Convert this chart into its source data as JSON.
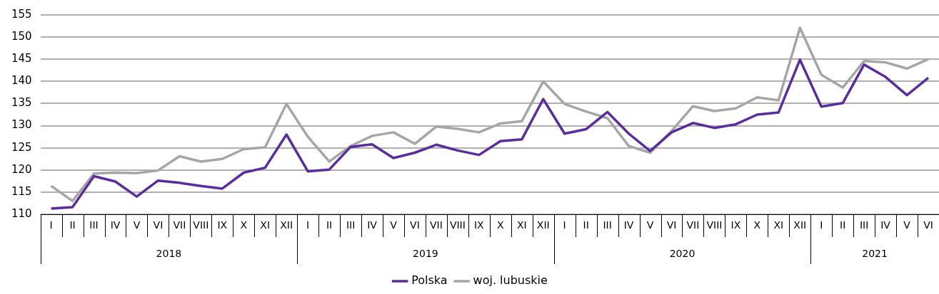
{
  "chart_data": {
    "type": "line",
    "categories": [
      "I",
      "II",
      "III",
      "IV",
      "V",
      "VI",
      "VII",
      "VIII",
      "IX",
      "X",
      "XI",
      "XII",
      "I",
      "II",
      "III",
      "IV",
      "V",
      "VI",
      "VII",
      "VIII",
      "IX",
      "X",
      "XI",
      "XII",
      "I",
      "II",
      "III",
      "IV",
      "V",
      "VI",
      "VII",
      "VIII",
      "IX",
      "X",
      "XI",
      "XII",
      "I",
      "II",
      "III",
      "IV",
      "V",
      "VI"
    ],
    "series": [
      {
        "name": "Polska",
        "color": "#5a2ca0",
        "values": [
          111.3,
          111.6,
          118.6,
          117.4,
          114.0,
          117.6,
          117.1,
          116.4,
          115.8,
          119.4,
          120.5,
          128.0,
          119.7,
          120.1,
          125.2,
          125.8,
          122.7,
          123.9,
          125.7,
          124.4,
          123.4,
          126.5,
          126.9,
          136.0,
          128.2,
          129.2,
          133.1,
          128.2,
          124.3,
          128.5,
          130.6,
          129.5,
          130.3,
          132.5,
          133.0,
          144.9,
          134.3,
          135.1,
          143.8,
          141.0,
          136.9,
          140.8
        ]
      },
      {
        "name": "woj. lubuskie",
        "color": "#a6a6a6",
        "values": [
          116.4,
          113.0,
          119.2,
          119.4,
          119.3,
          119.9,
          123.1,
          121.9,
          122.5,
          124.7,
          125.1,
          134.9,
          127.5,
          121.9,
          125.4,
          127.7,
          128.5,
          125.9,
          129.8,
          129.3,
          128.5,
          130.5,
          131.0,
          140.0,
          134.9,
          133.2,
          131.7,
          125.4,
          123.9,
          128.8,
          134.4,
          133.3,
          133.9,
          136.4,
          135.7,
          152.1,
          141.5,
          138.6,
          144.6,
          144.3,
          142.9,
          145.0
        ]
      }
    ],
    "annotations": [
      "2018",
      "2019",
      "2020",
      "2021"
    ],
    "ylim": [
      110,
      155
    ],
    "yticks": [
      110,
      115,
      120,
      125,
      130,
      135,
      140,
      145,
      150,
      155
    ],
    "grid": "y",
    "legend": "bottom",
    "marker": "none",
    "line_style": "solid"
  }
}
